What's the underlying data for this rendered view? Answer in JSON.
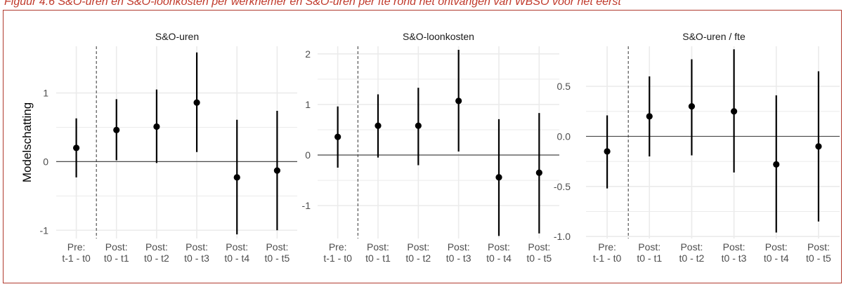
{
  "caption": "Figuur 4.6 S&O-uren en S&O-loonkosten per werknemer en S&O-uren per fte rond het ontvangen van WBSO voor het eerst",
  "y_axis_label": "Modelschatting",
  "colors": {
    "frame": "#b03a2e",
    "caption": "#c0392b",
    "grid": "#ebebeb",
    "point": "#000000"
  },
  "chart_data": [
    {
      "type": "scatter",
      "title": "S&O-uren",
      "ylabel": "Modelschatting",
      "categories": [
        "Pre:\nt-1 - t0",
        "Post:\nt0 - t1",
        "Post:\nt0 - t2",
        "Post:\nt0 - t3",
        "Post:\nt0 - t4",
        "Post:\nt0 - t5"
      ],
      "values": [
        0.2,
        0.46,
        0.51,
        0.86,
        -0.23,
        -0.13
      ],
      "lower": [
        -0.23,
        0.02,
        -0.02,
        0.14,
        -1.06,
        -1.0
      ],
      "upper": [
        0.63,
        0.91,
        1.05,
        1.59,
        0.61,
        0.74
      ],
      "yticks": [
        -1,
        0,
        1
      ],
      "ylim": [
        -1.12,
        1.68
      ],
      "reference_line": 0,
      "dashed_vline_between": [
        0,
        1
      ],
      "grid": true
    },
    {
      "type": "scatter",
      "title": "S&O-loonkosten",
      "categories": [
        "Pre:\nt-1 - t0",
        "Post:\nt0 - t1",
        "Post:\nt0 - t2",
        "Post:\nt0 - t3",
        "Post:\nt0 - t4",
        "Post:\nt0 - t5"
      ],
      "values": [
        0.36,
        0.58,
        0.58,
        1.07,
        -0.44,
        -0.35
      ],
      "lower": [
        -0.25,
        -0.05,
        -0.2,
        0.07,
        -1.6,
        -1.55
      ],
      "upper": [
        0.96,
        1.2,
        1.33,
        2.08,
        0.71,
        0.83
      ],
      "yticks": [
        -1,
        0,
        1,
        2
      ],
      "ylim": [
        -1.65,
        2.15
      ],
      "reference_line": 0,
      "dashed_vline_between": [
        0,
        1
      ],
      "grid": true
    },
    {
      "type": "scatter",
      "title": "S&O-uren / fte",
      "categories": [
        "Pre:\nt-1 - t0",
        "Post:\nt0 - t1",
        "Post:\nt0 - t2",
        "Post:\nt0 - t3",
        "Post:\nt0 - t4",
        "Post:\nt0 - t5"
      ],
      "values": [
        -0.15,
        0.2,
        0.3,
        0.25,
        -0.28,
        -0.1
      ],
      "lower": [
        -0.52,
        -0.2,
        -0.19,
        -0.36,
        -0.96,
        -0.85
      ],
      "upper": [
        0.21,
        0.6,
        0.77,
        0.87,
        0.41,
        0.65
      ],
      "yticks": [
        -1.0,
        -0.5,
        0.0,
        0.5
      ],
      "ylim": [
        -1.02,
        0.9
      ],
      "ytick_decimals": 1,
      "reference_line": 0,
      "dashed_vline_between": [
        0,
        1
      ],
      "grid": true
    }
  ]
}
